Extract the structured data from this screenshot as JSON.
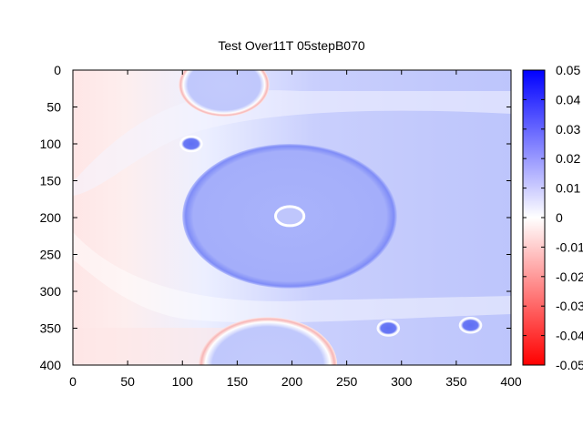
{
  "chart_data": {
    "type": "heatmap",
    "title": "Test Over11T 05stepB070",
    "xlabel": "",
    "ylabel": "",
    "xlim": [
      0,
      400
    ],
    "ylim": [
      0,
      400
    ],
    "y_inverted": true,
    "x_ticks": [
      "0",
      "50",
      "100",
      "150",
      "200",
      "250",
      "300",
      "350",
      "400"
    ],
    "y_ticks": [
      "0",
      "50",
      "100",
      "150",
      "200",
      "250",
      "300",
      "350",
      "400"
    ],
    "colorbar": {
      "range": [
        -0.05,
        0.05
      ],
      "ticks": [
        "0.05",
        "0.04",
        "0.03",
        "0.02",
        "0.01",
        "0",
        "-0.01",
        "-0.02",
        "-0.03",
        "-0.04",
        "-0.05"
      ],
      "colors": {
        "low": "#ff0000",
        "mid": "#ffffff",
        "high": "#0000ff"
      }
    },
    "field": {
      "background_values": {
        "left_edge": -0.004,
        "center": 0.012,
        "right_edge": 0.014
      },
      "features": [
        {
          "shape": "disk",
          "cx": 198,
          "cy": 198,
          "r": 98,
          "value": 0.018,
          "edge_value": 0.026
        },
        {
          "shape": "ring",
          "cx": 198,
          "cy": 198,
          "r": 13,
          "value": 0.008
        },
        {
          "shape": "disk",
          "cx": 108,
          "cy": 100,
          "r": 9,
          "value": 0.03
        },
        {
          "shape": "disk",
          "cx": 288,
          "cy": 350,
          "r": 9,
          "value": 0.03
        },
        {
          "shape": "disk",
          "cx": 363,
          "cy": 346,
          "r": 9,
          "value": 0.032
        },
        {
          "shape": "half-disk-top",
          "cx": 138,
          "cy": 20,
          "r": 38,
          "value": 0.014,
          "rim_value": -0.012
        },
        {
          "shape": "half-disk-bottom",
          "cx": 178,
          "cy": 400,
          "r": 60,
          "value": 0.012,
          "rim_value": -0.012
        }
      ]
    }
  }
}
